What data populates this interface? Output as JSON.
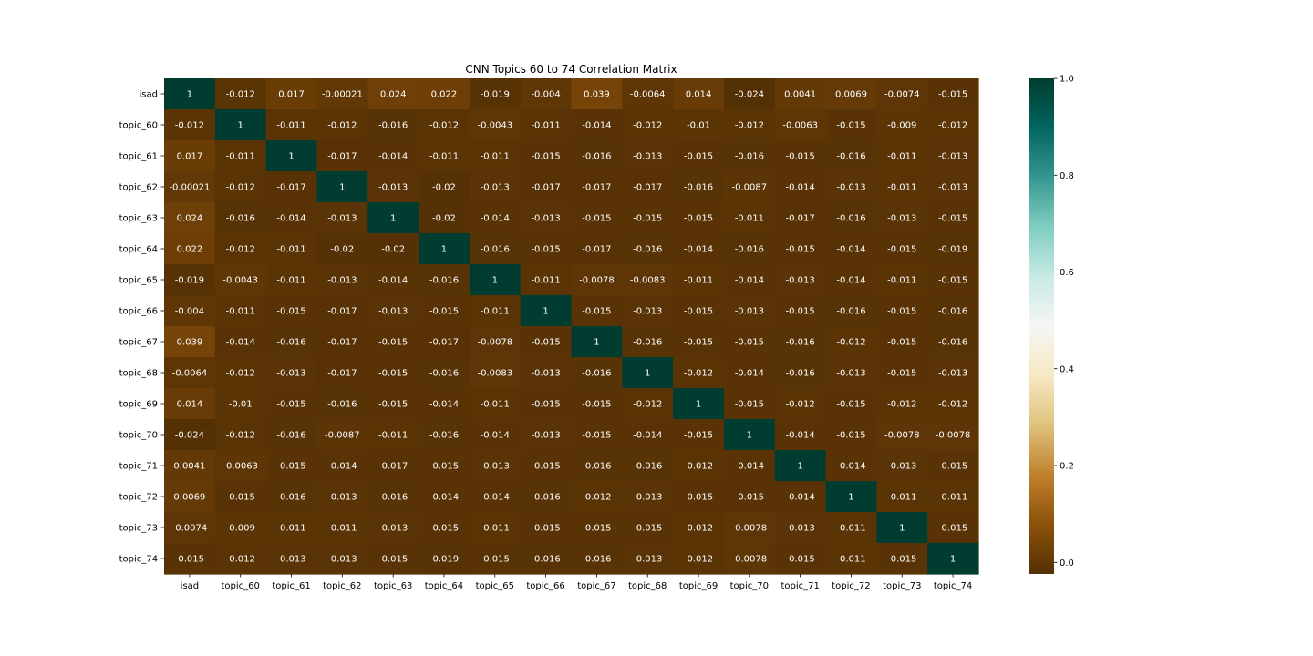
{
  "chart_data": {
    "type": "heatmap",
    "title": "CNN Topics 60 to 74 Correlation Matrix",
    "xlabel": "",
    "ylabel": "",
    "labels": [
      "isad",
      "topic_60",
      "topic_61",
      "topic_62",
      "topic_63",
      "topic_64",
      "topic_65",
      "topic_66",
      "topic_67",
      "topic_68",
      "topic_69",
      "topic_70",
      "topic_71",
      "topic_72",
      "topic_73",
      "topic_74"
    ],
    "matrix": [
      [
        1,
        -0.012,
        0.017,
        -0.00021,
        0.024,
        0.022,
        -0.019,
        -0.004,
        0.039,
        -0.0064,
        0.014,
        -0.024,
        0.0041,
        0.0069,
        -0.0074,
        -0.015
      ],
      [
        -0.012,
        1,
        -0.011,
        -0.012,
        -0.016,
        -0.012,
        -0.0043,
        -0.011,
        -0.014,
        -0.012,
        -0.01,
        -0.012,
        -0.0063,
        -0.015,
        -0.009,
        -0.012
      ],
      [
        0.017,
        -0.011,
        1,
        -0.017,
        -0.014,
        -0.011,
        -0.011,
        -0.015,
        -0.016,
        -0.013,
        -0.015,
        -0.016,
        -0.015,
        -0.016,
        -0.011,
        -0.013
      ],
      [
        -0.00021,
        -0.012,
        -0.017,
        1,
        -0.013,
        -0.02,
        -0.013,
        -0.017,
        -0.017,
        -0.017,
        -0.016,
        -0.0087,
        -0.014,
        -0.013,
        -0.011,
        -0.013
      ],
      [
        0.024,
        -0.016,
        -0.014,
        -0.013,
        1,
        -0.02,
        -0.014,
        -0.013,
        -0.015,
        -0.015,
        -0.015,
        -0.011,
        -0.017,
        -0.016,
        -0.013,
        -0.015
      ],
      [
        0.022,
        -0.012,
        -0.011,
        -0.02,
        -0.02,
        1,
        -0.016,
        -0.015,
        -0.017,
        -0.016,
        -0.014,
        -0.016,
        -0.015,
        -0.014,
        -0.015,
        -0.019
      ],
      [
        -0.019,
        -0.0043,
        -0.011,
        -0.013,
        -0.014,
        -0.016,
        1,
        -0.011,
        -0.0078,
        -0.0083,
        -0.011,
        -0.014,
        -0.013,
        -0.014,
        -0.011,
        -0.015
      ],
      [
        -0.004,
        -0.011,
        -0.015,
        -0.017,
        -0.013,
        -0.015,
        -0.011,
        1,
        -0.015,
        -0.013,
        -0.015,
        -0.013,
        -0.015,
        -0.016,
        -0.015,
        -0.016
      ],
      [
        0.039,
        -0.014,
        -0.016,
        -0.017,
        -0.015,
        -0.017,
        -0.0078,
        -0.015,
        1,
        -0.016,
        -0.015,
        -0.015,
        -0.016,
        -0.012,
        -0.015,
        -0.016
      ],
      [
        -0.0064,
        -0.012,
        -0.013,
        -0.017,
        -0.015,
        -0.016,
        -0.0083,
        -0.013,
        -0.016,
        1,
        -0.012,
        -0.014,
        -0.016,
        -0.013,
        -0.015,
        -0.013
      ],
      [
        0.014,
        -0.01,
        -0.015,
        -0.016,
        -0.015,
        -0.014,
        -0.011,
        -0.015,
        -0.015,
        -0.012,
        1,
        -0.015,
        -0.012,
        -0.015,
        -0.012,
        -0.012
      ],
      [
        -0.024,
        -0.012,
        -0.016,
        -0.0087,
        -0.011,
        -0.016,
        -0.014,
        -0.013,
        -0.015,
        -0.014,
        -0.015,
        1,
        -0.014,
        -0.015,
        -0.0078,
        -0.0078
      ],
      [
        0.0041,
        -0.0063,
        -0.015,
        -0.014,
        -0.017,
        -0.015,
        -0.013,
        -0.015,
        -0.016,
        -0.016,
        -0.012,
        -0.014,
        1,
        -0.014,
        -0.013,
        -0.015
      ],
      [
        0.0069,
        -0.015,
        -0.016,
        -0.013,
        -0.016,
        -0.014,
        -0.014,
        -0.016,
        -0.012,
        -0.013,
        -0.015,
        -0.015,
        -0.014,
        1,
        -0.011,
        -0.011
      ],
      [
        -0.0074,
        -0.009,
        -0.011,
        -0.011,
        -0.013,
        -0.015,
        -0.011,
        -0.015,
        -0.015,
        -0.015,
        -0.012,
        -0.0078,
        -0.013,
        -0.011,
        1,
        -0.015
      ],
      [
        -0.015,
        -0.012,
        -0.013,
        -0.013,
        -0.015,
        -0.019,
        -0.015,
        -0.016,
        -0.016,
        -0.013,
        -0.012,
        -0.0078,
        -0.015,
        -0.011,
        -0.015,
        1
      ]
    ],
    "value_range": [
      -0.024,
      1
    ],
    "colormap": "BrBG",
    "colorbar_ticks": [
      "0.0",
      "0.2",
      "0.4",
      "0.6",
      "0.8",
      "1.0"
    ],
    "colorbar_tick_values": [
      0,
      0.2,
      0.4,
      0.6,
      0.8,
      1.0
    ],
    "annotate": true,
    "grid": false,
    "legend": "colorbar-right"
  }
}
